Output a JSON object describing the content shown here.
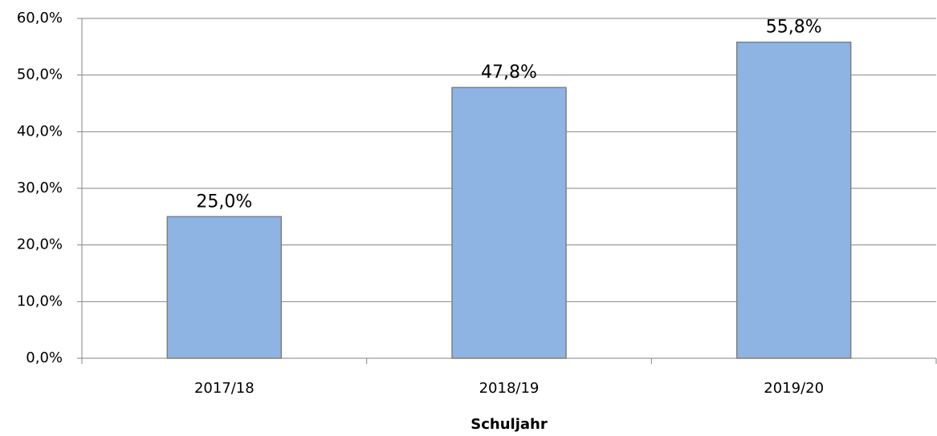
{
  "chart_data": {
    "type": "bar",
    "x_label": "Schuljahr",
    "categories": [
      "2017/18",
      "2018/19",
      "2019/20"
    ],
    "values": [
      25.0,
      47.8,
      55.8
    ],
    "value_labels": [
      "25,0%",
      "47,8%",
      "55,8%"
    ],
    "color": "#8eb4e3",
    "ylim": [
      0,
      60
    ],
    "yticks": [
      {
        "value": 0,
        "label": "0,0%"
      },
      {
        "value": 10,
        "label": "10,0%"
      },
      {
        "value": 20,
        "label": "20,0%"
      },
      {
        "value": 30,
        "label": "30,0%"
      },
      {
        "value": 40,
        "label": "40,0%"
      },
      {
        "value": 50,
        "label": "50,0%"
      },
      {
        "value": 60,
        "label": "60,0%"
      }
    ],
    "grid": true
  }
}
